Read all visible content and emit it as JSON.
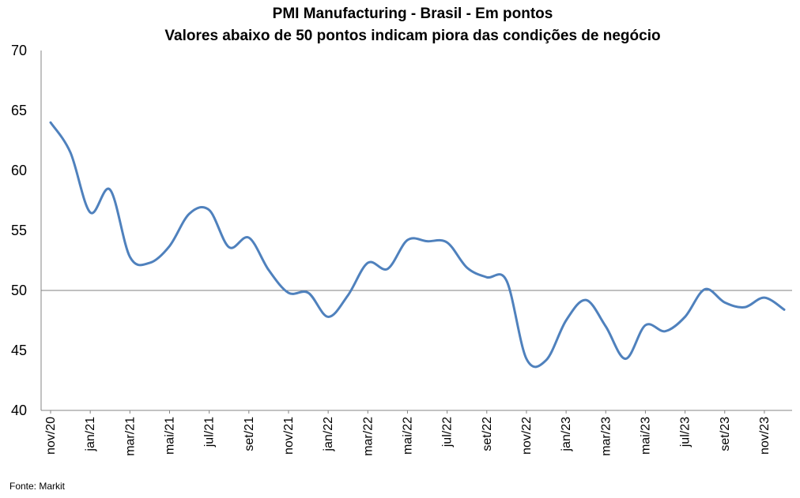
{
  "chart_data": {
    "type": "line",
    "title": "PMI Manufacturing - Brasil - Em pontos",
    "subtitle": "Valores abaixo de 50 pontos indicam piora das condições de negócio",
    "source": "Fonte: Markit",
    "ylim": [
      40,
      70
    ],
    "yticks": [
      "40",
      "45",
      "50",
      "55",
      "60",
      "65",
      "70"
    ],
    "reference_line": 50,
    "grid": false,
    "line_color": "#4f81bd",
    "reference_line_color": "#808080",
    "x": [
      "nov/20",
      "dez/20",
      "jan/21",
      "fev/21",
      "mar/21",
      "abr/21",
      "mai/21",
      "jun/21",
      "jul/21",
      "ago/21",
      "set/21",
      "out/21",
      "nov/21",
      "dez/21",
      "jan/22",
      "fev/22",
      "mar/22",
      "abr/22",
      "mai/22",
      "jun/22",
      "jul/22",
      "ago/22",
      "set/22",
      "out/22",
      "nov/22",
      "dez/22",
      "jan/23",
      "fev/23",
      "mar/23",
      "abr/23",
      "mai/23",
      "jun/23",
      "jul/23",
      "ago/23",
      "set/23",
      "out/23",
      "nov/23",
      "dez/23"
    ],
    "xtick_labels": [
      {
        "index": 0,
        "label": "nov/20"
      },
      {
        "index": 2,
        "label": "jan/21"
      },
      {
        "index": 4,
        "label": "mar/21"
      },
      {
        "index": 6,
        "label": "mai/21"
      },
      {
        "index": 8,
        "label": "jul/21"
      },
      {
        "index": 10,
        "label": "set/21"
      },
      {
        "index": 12,
        "label": "nov/21"
      },
      {
        "index": 14,
        "label": "jan/22"
      },
      {
        "index": 16,
        "label": "mar/22"
      },
      {
        "index": 18,
        "label": "mai/22"
      },
      {
        "index": 20,
        "label": "jul/22"
      },
      {
        "index": 22,
        "label": "set/22"
      },
      {
        "index": 24,
        "label": "nov/22"
      },
      {
        "index": 26,
        "label": "jan/23"
      },
      {
        "index": 28,
        "label": "mar/23"
      },
      {
        "index": 30,
        "label": "mai/23"
      },
      {
        "index": 32,
        "label": "jul/23"
      },
      {
        "index": 34,
        "label": "set/23"
      },
      {
        "index": 36,
        "label": "nov/23"
      }
    ],
    "series": [
      {
        "values": [
          64.0,
          61.5,
          56.5,
          58.4,
          52.8,
          52.3,
          53.7,
          56.4,
          56.7,
          53.6,
          54.4,
          51.7,
          49.8,
          49.8,
          47.8,
          49.6,
          52.3,
          51.8,
          54.2,
          54.1,
          54.0,
          51.9,
          51.1,
          50.8,
          44.3,
          44.2,
          47.5,
          49.2,
          47.0,
          44.3,
          47.1,
          46.6,
          47.8,
          50.1,
          49.0,
          48.6,
          49.4,
          48.4
        ]
      }
    ]
  }
}
